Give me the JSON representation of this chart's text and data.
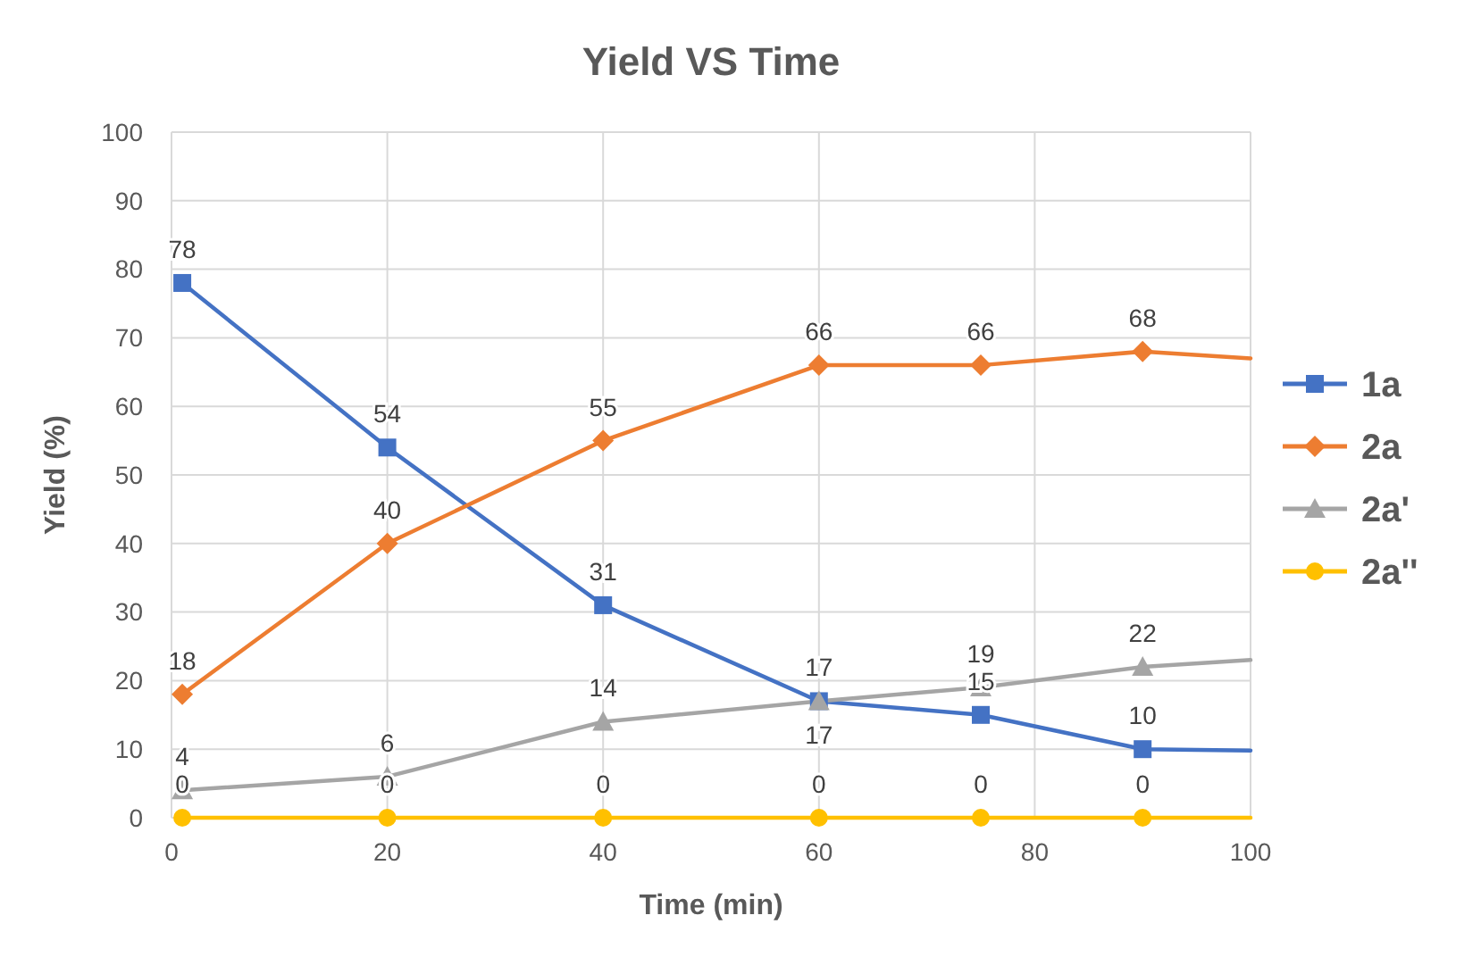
{
  "chart_data": {
    "type": "line",
    "title": "Yield VS Time",
    "xlabel": "Time (min)",
    "ylabel": "Yield (%)",
    "xlim": [
      0,
      100
    ],
    "xticks": [
      0,
      20,
      40,
      60,
      80,
      100
    ],
    "ylim": [
      0,
      100
    ],
    "yticks": [
      0,
      10,
      20,
      30,
      40,
      50,
      60,
      70,
      80,
      90,
      100
    ],
    "grid": true,
    "legend": "right",
    "series": [
      {
        "name": "1a",
        "color": "#4472c4",
        "marker": "square",
        "x": [
          1,
          20,
          40,
          60,
          75,
          90,
          100
        ],
        "values": [
          78,
          54,
          31,
          17,
          15,
          10,
          9.8
        ],
        "value_labels": [
          "78",
          "54",
          "31",
          "17",
          "15",
          "10",
          null
        ]
      },
      {
        "name": "2a",
        "color": "#ed7d31",
        "marker": "diamond",
        "x": [
          1,
          20,
          40,
          60,
          75,
          90,
          100
        ],
        "values": [
          18,
          40,
          55,
          66,
          66,
          68,
          67
        ],
        "value_labels": [
          "18",
          "40",
          "55",
          "66",
          "66",
          "68",
          null
        ]
      },
      {
        "name": "2a'",
        "color": "#a5a5a5",
        "marker": "triangle",
        "x": [
          1,
          20,
          40,
          60,
          75,
          90,
          100
        ],
        "values": [
          4,
          6,
          14,
          17,
          19,
          22,
          23
        ],
        "value_labels": [
          "4",
          "6",
          "14",
          "17",
          "19",
          "22",
          null
        ]
      },
      {
        "name": "2a''",
        "color": "#ffc000",
        "marker": "circle",
        "x": [
          1,
          20,
          40,
          60,
          75,
          90,
          100
        ],
        "values": [
          0,
          0,
          0,
          0,
          0,
          0,
          0
        ],
        "value_labels": [
          "0",
          "0",
          "0",
          "0",
          "0",
          "0",
          null
        ]
      }
    ]
  }
}
